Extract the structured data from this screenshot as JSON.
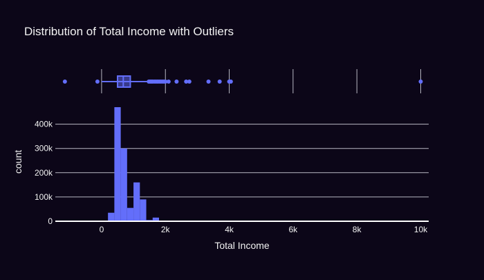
{
  "chart_data": {
    "type": "histogram",
    "title": "Distribution of Total Income with Outliers",
    "xlabel": "Total Income",
    "ylabel": "count",
    "xlim": [
      -1450,
      10250
    ],
    "ylim": [
      0,
      490000
    ],
    "x_ticks": [
      {
        "value": 0,
        "label": "0"
      },
      {
        "value": 2000,
        "label": "2k"
      },
      {
        "value": 4000,
        "label": "4k"
      },
      {
        "value": 6000,
        "label": "6k"
      },
      {
        "value": 8000,
        "label": "8k"
      },
      {
        "value": 10000,
        "label": "10k"
      }
    ],
    "y_ticks": [
      {
        "value": 0,
        "label": "0"
      },
      {
        "value": 100000,
        "label": "100k"
      },
      {
        "value": 200000,
        "label": "200k"
      },
      {
        "value": 300000,
        "label": "300k"
      },
      {
        "value": 400000,
        "label": "400k"
      }
    ],
    "grid": true,
    "bar_color": "#636efa",
    "background": "#0c0618",
    "bins": [
      {
        "x0": 200,
        "x1": 400,
        "count": 35000
      },
      {
        "x0": 400,
        "x1": 600,
        "count": 470000
      },
      {
        "x0": 600,
        "x1": 800,
        "count": 300000
      },
      {
        "x0": 800,
        "x1": 1000,
        "count": 55000
      },
      {
        "x0": 1000,
        "x1": 1200,
        "count": 160000
      },
      {
        "x0": 1200,
        "x1": 1400,
        "count": 90000
      },
      {
        "x0": 1400,
        "x1": 1600,
        "count": 5000
      },
      {
        "x0": 1600,
        "x1": 1800,
        "count": 15000
      }
    ],
    "box": {
      "min": 0,
      "q1": 500,
      "median": 680,
      "q3": 900,
      "max": 1450,
      "outliers": [
        -1150,
        -130,
        1480,
        1520,
        1560,
        1600,
        1650,
        1700,
        1750,
        1800,
        1850,
        1900,
        1950,
        2000,
        2100,
        2350,
        2650,
        2750,
        3350,
        3700,
        4000,
        4050,
        10000
      ]
    }
  }
}
